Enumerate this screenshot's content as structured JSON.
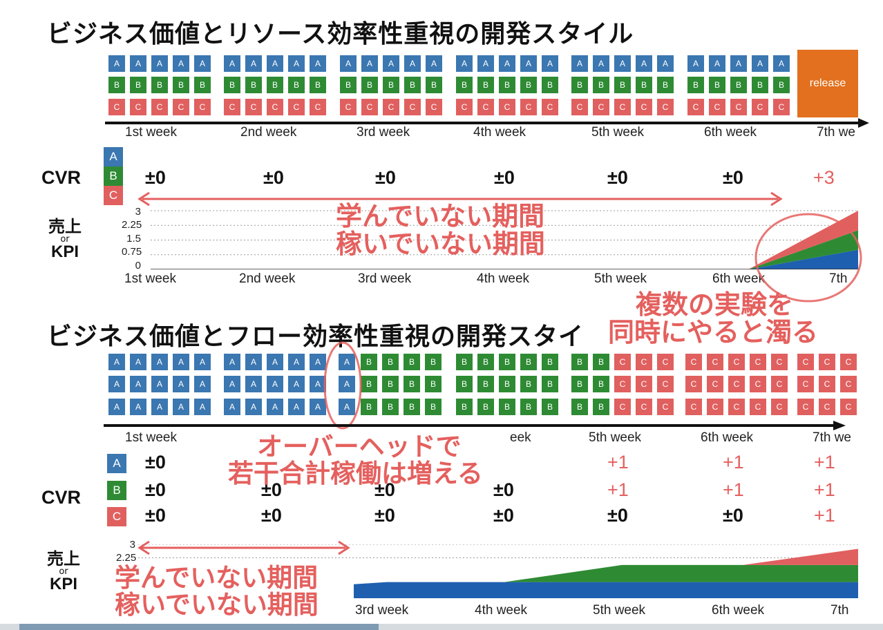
{
  "colors": {
    "A": "#3b77b1",
    "B": "#2e8b34",
    "C": "#e0605f",
    "accent": "#e4605e",
    "release": "#e2701e",
    "area_blue": "#1f5fb0",
    "area_green": "#2e8b34",
    "area_red": "#e0605f"
  },
  "top": {
    "title": "ビジネス価値とリソース効率性重視の開発スタイル",
    "week_labels": [
      "1st week",
      "2nd week",
      "3rd week",
      "4th week",
      "5th week",
      "6th week",
      "7th we"
    ],
    "release_label": "release",
    "cvr_label": "CVR",
    "badges": [
      "A",
      "B",
      "C"
    ],
    "cvr_values": [
      "±0",
      "±0",
      "±0",
      "±0",
      "±0",
      "±0",
      "+3"
    ],
    "kpi_label": {
      "line1": "売上",
      "line2": "or",
      "line3": "KPI"
    },
    "y_ticks": [
      "3",
      "2.25",
      "1.5",
      "0.75",
      "0"
    ],
    "chart_week_labels": [
      "1st week",
      "2nd week",
      "3rd week",
      "4th week",
      "5th week",
      "6th week",
      "7th"
    ],
    "note_learning": [
      "学んでいない期間",
      "稼いでいない期間"
    ],
    "note_muddy": [
      "複数の実験を",
      "同時にやると濁る"
    ]
  },
  "bottom": {
    "title": "ビジネス価値とフロー効率性重視の開発スタイ",
    "week_labels": [
      "1st week",
      "eek",
      "5th week",
      "6th week",
      "7th we"
    ],
    "cvr_label": "CVR",
    "badges": [
      "A",
      "B",
      "C"
    ],
    "cvr_rows": [
      [
        "±0",
        "",
        "",
        "",
        "+1",
        "+1",
        "+1"
      ],
      [
        "±0",
        "±0",
        "±0",
        "±0",
        "+1",
        "+1",
        "+1"
      ],
      [
        "±0",
        "±0",
        "±0",
        "±0",
        "±0",
        "±0",
        "+1"
      ]
    ],
    "kpi_label": {
      "line1": "売上",
      "line2": "or",
      "line3": "KPI"
    },
    "y_ticks": [
      "3",
      "2.25"
    ],
    "chart_week_labels": [
      "3rd week",
      "4th week",
      "5th week",
      "6th week",
      "7th"
    ],
    "note_overhead": [
      "オーバーヘッドで",
      "若干合計稼働は増える"
    ],
    "note_learning": [
      "学んでいない期間",
      "稼いでいない期間"
    ]
  },
  "chart_data": [
    {
      "type": "area",
      "x": [
        "1st week",
        "2nd week",
        "3rd week",
        "4th week",
        "5th week",
        "6th week",
        "7th"
      ],
      "ylim": [
        0,
        3
      ],
      "series": [
        {
          "values": [
            0,
            0,
            0,
            0,
            0,
            0,
            1
          ]
        },
        {
          "values": [
            0,
            0,
            0,
            0,
            0,
            0,
            1
          ]
        },
        {
          "values": [
            0,
            0,
            0,
            0,
            0,
            0,
            1
          ]
        }
      ]
    },
    {
      "type": "area",
      "x": [
        "3rd week",
        "4th week",
        "5th week",
        "6th week",
        "7th"
      ],
      "ylim": [
        0,
        3
      ],
      "series": [
        {
          "values": [
            1,
            1,
            1,
            1,
            1
          ]
        },
        {
          "values": [
            0,
            0,
            1,
            1,
            1
          ]
        },
        {
          "values": [
            0,
            0,
            0,
            0,
            1
          ]
        }
      ]
    }
  ]
}
